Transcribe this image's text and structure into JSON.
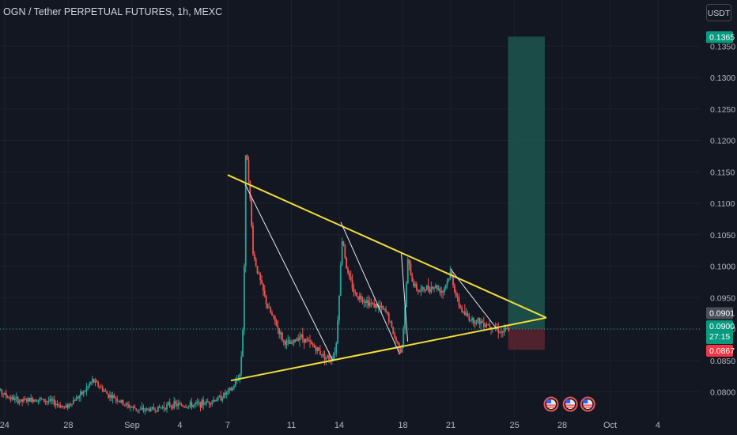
{
  "header": {
    "title": "OGN / Tether PERPETUAL FUTURES, 1h, MEXC",
    "currency_button": "USDT"
  },
  "colors": {
    "background": "#131722",
    "up": "#26a69a",
    "down": "#ef5350",
    "trendline": "#f2dd38",
    "target_zone": "#1f5f55",
    "stop_zone": "#5c2430"
  },
  "chart_data": {
    "type": "candlestick",
    "title": "OGN / Tether PERPETUAL FUTURES, 1h, MEXC",
    "ylim": [
      0.076,
      0.142
    ],
    "y_ticks": [
      "0.0800",
      "0.0850",
      "0.0900",
      "0.0950",
      "0.1000",
      "0.1050",
      "0.1100",
      "0.1150",
      "0.1200",
      "0.1250",
      "0.1300",
      "0.1350"
    ],
    "x_ticks": [
      "24",
      "28",
      "Sep",
      "4",
      "7",
      "11",
      "14",
      "18",
      "21",
      "25",
      "28",
      "Oct",
      "4"
    ],
    "x_tick_days": [
      -8,
      -4,
      0,
      3,
      6,
      10,
      13,
      17,
      20,
      24,
      27,
      30,
      33
    ],
    "last_price": 0.09,
    "countdown": "27:15",
    "price_tags": [
      {
        "label": "0.1365",
        "value": 0.1365,
        "color": "#089981"
      },
      {
        "label": "0.0901",
        "value": 0.0901,
        "color": "#4a4e5a"
      },
      {
        "label": "0.0900",
        "value": 0.09,
        "color": "#089981"
      },
      {
        "label": "0.0867",
        "value": 0.0867,
        "color": "#f23645"
      }
    ],
    "position": {
      "entry": 0.09,
      "target": 0.1365,
      "stop": 0.0867,
      "day_start": 23.6,
      "day_end": 25.9
    },
    "triangle": {
      "upper": {
        "from": [
          6.0,
          0.1145
        ],
        "to": [
          26.0,
          0.0918
        ]
      },
      "lower": {
        "from": [
          6.2,
          0.0818
        ],
        "to": [
          26.0,
          0.0918
        ]
      }
    },
    "swing_lines": [
      {
        "from": [
          7.1,
          0.113
        ],
        "to": [
          12.6,
          0.085
        ]
      },
      {
        "from": [
          13.1,
          0.107
        ],
        "to": [
          16.8,
          0.086
        ]
      },
      {
        "from": [
          16.9,
          0.102
        ],
        "to": [
          17.3,
          0.088
        ]
      },
      {
        "from": [
          20.0,
          0.0995
        ],
        "to": [
          22.9,
          0.09
        ]
      }
    ],
    "price_path": [
      [
        -9.0,
        0.0818
      ],
      [
        -8.5,
        0.0805
      ],
      [
        -7.8,
        0.0792
      ],
      [
        -7.0,
        0.0785
      ],
      [
        -6.0,
        0.0789
      ],
      [
        -5.0,
        0.0784
      ],
      [
        -4.2,
        0.0775
      ],
      [
        -3.5,
        0.079
      ],
      [
        -3.0,
        0.08
      ],
      [
        -2.5,
        0.0818
      ],
      [
        -2.0,
        0.0808
      ],
      [
        -1.5,
        0.0795
      ],
      [
        -1.0,
        0.079
      ],
      [
        -0.5,
        0.078
      ],
      [
        0.5,
        0.0771
      ],
      [
        1.5,
        0.0773
      ],
      [
        2.5,
        0.078
      ],
      [
        3.5,
        0.0778
      ],
      [
        4.5,
        0.0782
      ],
      [
        5.5,
        0.079
      ],
      [
        6.3,
        0.0805
      ],
      [
        6.8,
        0.083
      ],
      [
        7.0,
        0.0925
      ],
      [
        7.15,
        0.12
      ],
      [
        7.3,
        0.115
      ],
      [
        7.6,
        0.102
      ],
      [
        8.0,
        0.098
      ],
      [
        8.5,
        0.0935
      ],
      [
        9.0,
        0.091
      ],
      [
        9.5,
        0.088
      ],
      [
        10.0,
        0.0875
      ],
      [
        10.5,
        0.089
      ],
      [
        11.0,
        0.088
      ],
      [
        11.5,
        0.087
      ],
      [
        12.0,
        0.0858
      ],
      [
        12.5,
        0.0852
      ],
      [
        12.8,
        0.087
      ],
      [
        13.05,
        0.098
      ],
      [
        13.2,
        0.105
      ],
      [
        13.5,
        0.099
      ],
      [
        14.0,
        0.0955
      ],
      [
        14.5,
        0.0948
      ],
      [
        15.0,
        0.094
      ],
      [
        15.5,
        0.0935
      ],
      [
        16.0,
        0.0925
      ],
      [
        16.5,
        0.0885
      ],
      [
        16.9,
        0.0865
      ],
      [
        17.1,
        0.092
      ],
      [
        17.3,
        0.101
      ],
      [
        17.6,
        0.0975
      ],
      [
        18.0,
        0.096
      ],
      [
        18.5,
        0.0965
      ],
      [
        19.0,
        0.0968
      ],
      [
        19.5,
        0.096
      ],
      [
        20.0,
        0.099
      ],
      [
        20.4,
        0.0945
      ],
      [
        20.8,
        0.0925
      ],
      [
        21.3,
        0.0915
      ],
      [
        21.8,
        0.0912
      ],
      [
        22.3,
        0.0908
      ],
      [
        22.8,
        0.0902
      ],
      [
        23.2,
        0.0895
      ],
      [
        23.7,
        0.09
      ]
    ]
  },
  "event_markers": [
    {
      "name": "us-flag-event-icon",
      "day": 26.3
    },
    {
      "name": "us-flag-event-icon",
      "day": 27.5
    },
    {
      "name": "us-flag-event-icon",
      "day": 28.6
    }
  ]
}
